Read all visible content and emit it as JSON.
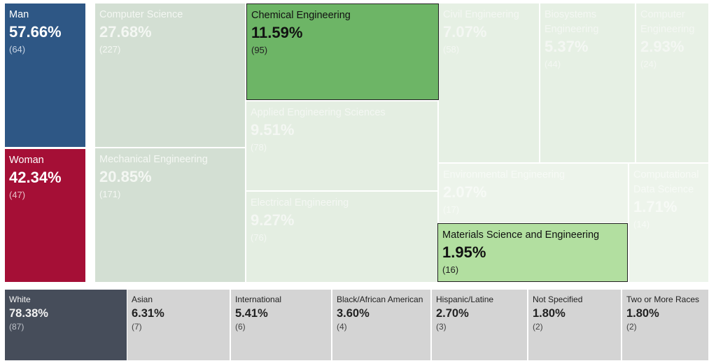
{
  "chart_data": [
    {
      "type": "treemap",
      "categories": [
        "Man",
        "Woman"
      ],
      "values": [
        57.66,
        42.34
      ],
      "value_labels": [
        "57.66%",
        "42.34%"
      ],
      "counts": [
        64,
        47
      ],
      "count_labels": [
        "(64)",
        "(47)"
      ],
      "colors": [
        "#2e5785",
        "#a50f36"
      ]
    },
    {
      "type": "treemap",
      "categories": [
        "Computer Science",
        "Mechanical Engineering",
        "Chemical Engineering",
        "Applied Engineering Sciences",
        "Electrical Engineering",
        "Civil Engineering",
        "Biosystems Engineering",
        "Computer Engineering",
        "Environmental Engineering",
        "Computational Data Science",
        "Materials Science and Engineering"
      ],
      "values": [
        27.68,
        20.85,
        11.59,
        9.51,
        9.27,
        7.07,
        5.37,
        2.93,
        2.07,
        1.71,
        1.95
      ],
      "value_labels": [
        "27.68%",
        "20.85%",
        "11.59%",
        "9.51%",
        "9.27%",
        "7.07%",
        "5.37%",
        "2.93%",
        "2.07%",
        "1.71%",
        "1.95%"
      ],
      "counts": [
        227,
        171,
        95,
        78,
        76,
        58,
        44,
        24,
        17,
        14,
        16
      ],
      "count_labels": [
        "(227)",
        "(171)",
        "(95)",
        "(78)",
        "(76)",
        "(58)",
        "(44)",
        "(24)",
        "(17)",
        "(14)",
        "(16)"
      ],
      "colors": [
        "#d3dfd3",
        "#d3dfd3",
        "#6db566",
        "#e4eee2",
        "#e4eee2",
        "#e6f0e4",
        "#e6f0e4",
        "#e8f1e6",
        "#edf4eb",
        "#edf4eb",
        "#b2dfa0"
      ]
    },
    {
      "type": "treemap",
      "categories": [
        "White",
        "Asian",
        "International",
        "Black/African American",
        "Hispanic/Latine",
        "Not Specified",
        "Two or More Races"
      ],
      "values": [
        78.38,
        6.31,
        5.41,
        3.6,
        2.7,
        1.8,
        1.8
      ],
      "value_labels": [
        "78.38%",
        "6.31%",
        "5.41%",
        "3.60%",
        "2.70%",
        "1.80%",
        "1.80%"
      ],
      "counts": [
        87,
        7,
        6,
        4,
        3,
        2,
        2
      ],
      "count_labels": [
        "(87)",
        "(7)",
        "(6)",
        "(4)",
        "(3)",
        "(2)",
        "(2)"
      ],
      "colors": [
        "#464d5a",
        "#d4d4d4",
        "#d4d4d4",
        "#d4d4d4",
        "#d4d4d4",
        "#d4d4d4",
        "#d4d4d4"
      ]
    }
  ]
}
